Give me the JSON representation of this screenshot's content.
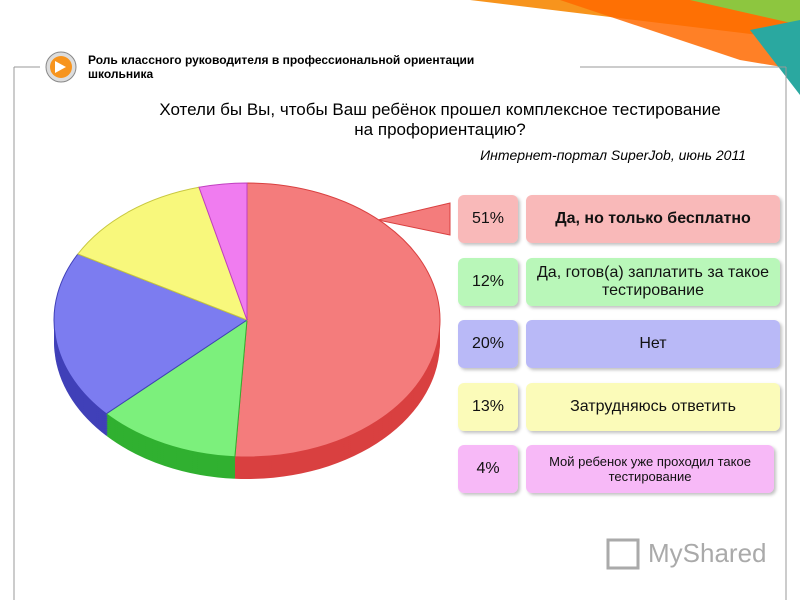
{
  "header": "Роль классного руководителя в профессиональной ориентации школьника",
  "chart_data": {
    "type": "pie",
    "title": "Хотели бы Вы, чтобы Ваш ребёнок прошел комплексное тестирование на профориентацию?",
    "subtitle": "Интернет-портал SuperJob, июнь 2011",
    "categories": [
      "Да, но только бесплатно",
      "Да, готов(а) заплатить за такое тестирование",
      "Нет",
      "Затрудняюсь ответить",
      "Мой ребенок уже проходил такое тестирование"
    ],
    "values": [
      51,
      12,
      20,
      13,
      4
    ],
    "value_labels": [
      "51%",
      "12%",
      "20%",
      "13%",
      "4%"
    ],
    "colors": [
      "#f47c7c",
      "#7cf07c",
      "#7c7cf0",
      "#f8f87c",
      "#f07cf0"
    ],
    "side_colors": [
      "#d94040",
      "#30b030",
      "#4040b8",
      "#c8c840",
      "#c040c0"
    ]
  },
  "watermark": "MyShared"
}
